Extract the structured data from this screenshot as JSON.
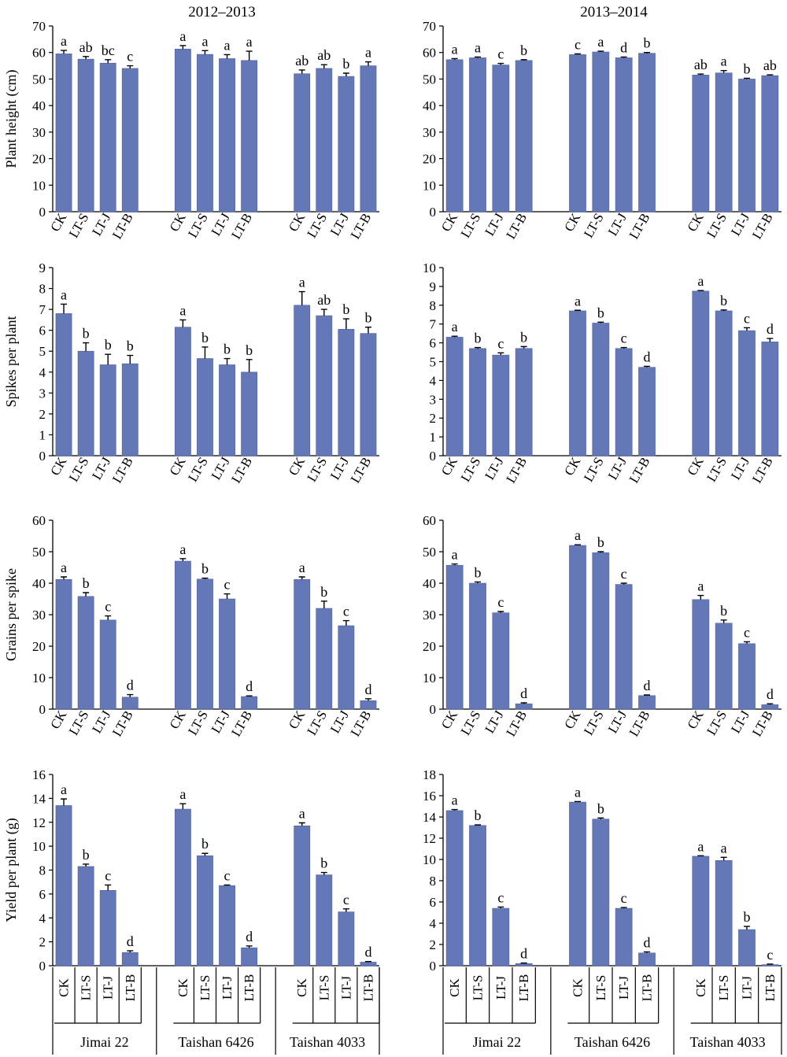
{
  "column_titles": [
    "2012–2013",
    "2013–2014"
  ],
  "cultivars": [
    "Jimai 22",
    "Taishan 6426",
    "Taishan 4033"
  ],
  "treatments": [
    "CK",
    "LT-S",
    "LT-J",
    "LT-B"
  ],
  "colors": {
    "bar": "#6478b8",
    "bar_edge": "#4f60a0",
    "axis": "#000000"
  },
  "chart_data": [
    {
      "type": "bar",
      "title": "2012–2013",
      "ylabel": "Plant height (cm)",
      "ylim": [
        0,
        70
      ],
      "yticks": [
        0,
        10,
        20,
        30,
        40,
        50,
        60,
        70
      ],
      "categories": [
        "CK",
        "LT-S",
        "LT-J",
        "LT-B",
        "CK",
        "LT-S",
        "LT-J",
        "LT-B",
        "CK",
        "LT-S",
        "LT-J",
        "LT-B"
      ],
      "values": [
        59.5,
        57.5,
        56,
        54,
        61.3,
        59.3,
        57.7,
        57,
        52,
        54,
        51,
        55
      ],
      "errors": [
        1.3,
        1.0,
        1.3,
        1.0,
        1.3,
        1.4,
        1.5,
        3.5,
        1.4,
        1.4,
        1.2,
        1.5
      ],
      "labels": [
        "a",
        "ab",
        "bc",
        "c",
        "a",
        "a",
        "a",
        "a",
        "ab",
        "ab",
        "b",
        "a"
      ]
    },
    {
      "type": "bar",
      "title": "2013–2014",
      "ylabel": "",
      "ylim": [
        0,
        70
      ],
      "yticks": [
        0,
        10,
        20,
        30,
        40,
        50,
        60,
        70
      ],
      "categories": [
        "CK",
        "LT-S",
        "LT-J",
        "LT-B",
        "CK",
        "LT-S",
        "LT-J",
        "LT-B",
        "CK",
        "LT-S",
        "LT-J",
        "LT-B"
      ],
      "values": [
        57.3,
        58,
        55.3,
        57,
        59.2,
        60.2,
        58,
        59.7,
        51.5,
        52.3,
        50,
        51.3
      ],
      "errors": [
        0.4,
        0.3,
        0.6,
        0.3,
        0.3,
        0.3,
        0.3,
        0.3,
        0.4,
        0.9,
        0.3,
        0.3
      ],
      "labels": [
        "a",
        "a",
        "c",
        "b",
        "c",
        "a",
        "d",
        "b",
        "ab",
        "a",
        "b",
        "ab"
      ]
    },
    {
      "type": "bar",
      "title": "",
      "ylabel": "Spikes per plant",
      "ylim": [
        0,
        9
      ],
      "yticks": [
        0,
        1,
        2,
        3,
        4,
        5,
        6,
        7,
        8,
        9
      ],
      "categories": [
        "CK",
        "LT-S",
        "LT-J",
        "LT-B",
        "CK",
        "LT-S",
        "LT-J",
        "LT-B",
        "CK",
        "LT-S",
        "LT-J",
        "LT-B"
      ],
      "values": [
        6.8,
        5.0,
        4.35,
        4.4,
        6.15,
        4.65,
        4.35,
        4.0,
        7.2,
        6.7,
        6.05,
        5.85
      ],
      "errors": [
        0.45,
        0.4,
        0.5,
        0.4,
        0.35,
        0.55,
        0.3,
        0.6,
        0.65,
        0.3,
        0.5,
        0.3
      ],
      "labels": [
        "a",
        "b",
        "b",
        "b",
        "a",
        "b",
        "b",
        "b",
        "a",
        "ab",
        "b",
        "b"
      ]
    },
    {
      "type": "bar",
      "title": "",
      "ylabel": "",
      "ylim": [
        0,
        10
      ],
      "yticks": [
        0,
        1,
        2,
        3,
        4,
        5,
        6,
        7,
        8,
        9,
        10
      ],
      "categories": [
        "CK",
        "LT-S",
        "LT-J",
        "LT-B",
        "CK",
        "LT-S",
        "LT-J",
        "LT-B",
        "CK",
        "LT-S",
        "LT-J",
        "LT-B"
      ],
      "values": [
        6.3,
        5.7,
        5.35,
        5.7,
        7.7,
        7.05,
        5.7,
        4.7,
        8.75,
        7.7,
        6.65,
        6.05
      ],
      "errors": [
        0.05,
        0.05,
        0.12,
        0.1,
        0.03,
        0.05,
        0.05,
        0.05,
        0.03,
        0.05,
        0.15,
        0.18
      ],
      "labels": [
        "a",
        "b",
        "c",
        "b",
        "a",
        "b",
        "c",
        "d",
        "a",
        "b",
        "c",
        "d"
      ]
    },
    {
      "type": "bar",
      "title": "",
      "ylabel": "Grains per spike",
      "ylim": [
        0,
        60
      ],
      "yticks": [
        0,
        10,
        20,
        30,
        40,
        50,
        60
      ],
      "categories": [
        "CK",
        "LT-S",
        "LT-J",
        "LT-B",
        "CK",
        "LT-S",
        "LT-J",
        "LT-B",
        "CK",
        "LT-S",
        "LT-J",
        "LT-B"
      ],
      "values": [
        41.2,
        35.8,
        28.3,
        3.8,
        47,
        41.3,
        35,
        4,
        41.2,
        32,
        26.5,
        2.7
      ],
      "errors": [
        0.8,
        1.2,
        1.3,
        0.8,
        0.8,
        0.3,
        1.6,
        0.2,
        0.8,
        2.3,
        1.6,
        0.6
      ],
      "labels": [
        "a",
        "b",
        "c",
        "d",
        "a",
        "b",
        "c",
        "d",
        "a",
        "b",
        "c",
        "d"
      ]
    },
    {
      "type": "bar",
      "title": "",
      "ylabel": "",
      "ylim": [
        0,
        60
      ],
      "yticks": [
        0,
        10,
        20,
        30,
        40,
        50,
        60
      ],
      "categories": [
        "CK",
        "LT-S",
        "LT-J",
        "LT-B",
        "CK",
        "LT-S",
        "LT-J",
        "LT-B",
        "CK",
        "LT-S",
        "LT-J",
        "LT-B"
      ],
      "values": [
        45.7,
        40,
        30.6,
        1.7,
        52,
        49.7,
        39.6,
        4.3,
        34.8,
        27.3,
        20.8,
        1.4
      ],
      "errors": [
        0.4,
        0.4,
        0.4,
        0.3,
        0.2,
        0.3,
        0.4,
        0.2,
        1.3,
        1.0,
        0.6,
        0.3
      ],
      "labels": [
        "a",
        "b",
        "c",
        "d",
        "a",
        "b",
        "c",
        "d",
        "a",
        "b",
        "c",
        "d"
      ]
    },
    {
      "type": "bar",
      "title": "",
      "ylabel": "Yield per plant (g)",
      "ylim": [
        0,
        16
      ],
      "yticks": [
        0,
        2,
        4,
        6,
        8,
        10,
        12,
        14,
        16
      ],
      "categories": [
        "CK",
        "LT-S",
        "LT-J",
        "LT-B",
        "CK",
        "LT-S",
        "LT-J",
        "LT-B",
        "CK",
        "LT-S",
        "LT-J",
        "LT-B"
      ],
      "values": [
        13.4,
        8.3,
        6.3,
        1.1,
        13.1,
        9.2,
        6.7,
        1.5,
        11.7,
        7.6,
        4.5,
        0.3
      ],
      "errors": [
        0.55,
        0.2,
        0.45,
        0.15,
        0.45,
        0.2,
        0.05,
        0.15,
        0.25,
        0.2,
        0.25,
        0.05
      ],
      "labels": [
        "a",
        "b",
        "c",
        "d",
        "a",
        "b",
        "c",
        "d",
        "a",
        "b",
        "c",
        "d"
      ]
    },
    {
      "type": "bar",
      "title": "",
      "ylabel": "",
      "ylim": [
        0,
        18
      ],
      "yticks": [
        0,
        2,
        4,
        6,
        8,
        10,
        12,
        14,
        16,
        18
      ],
      "categories": [
        "CK",
        "LT-S",
        "LT-J",
        "LT-B",
        "CK",
        "LT-S",
        "LT-J",
        "LT-B",
        "CK",
        "LT-S",
        "LT-J",
        "LT-B"
      ],
      "values": [
        14.6,
        13.2,
        5.4,
        0.2,
        15.4,
        13.8,
        5.4,
        1.2,
        10.3,
        9.9,
        3.4,
        0.1
      ],
      "errors": [
        0.1,
        0.05,
        0.12,
        0.05,
        0.05,
        0.1,
        0.08,
        0.1,
        0.05,
        0.3,
        0.3,
        0.05
      ],
      "labels": [
        "a",
        "b",
        "c",
        "d",
        "a",
        "b",
        "c",
        "d",
        "a",
        "a",
        "b",
        "c"
      ]
    }
  ]
}
